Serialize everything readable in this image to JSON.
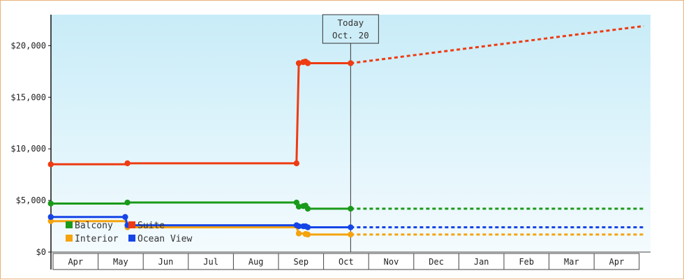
{
  "chart_data": {
    "type": "line",
    "title": "",
    "xlabel": "",
    "ylabel": "",
    "ylim": [
      0,
      23000
    ],
    "y_ticks": [
      {
        "value": 0,
        "label": "$0"
      },
      {
        "value": 5000,
        "label": "$5,000"
      },
      {
        "value": 10000,
        "label": "$10,000"
      },
      {
        "value": 15000,
        "label": "$15,000"
      },
      {
        "value": 20000,
        "label": "$20,000"
      }
    ],
    "month_labels": [
      "Apr",
      "May",
      "Jun",
      "Jul",
      "Aug",
      "Sep",
      "Oct",
      "Nov",
      "Dec",
      "Jan",
      "Feb",
      "Mar",
      "Apr"
    ],
    "x_unit": "months since start of Apr",
    "xlim": [
      -0.08,
      13.1
    ],
    "today": {
      "x": 6.6,
      "line1": "Today",
      "line2": "Oct. 20"
    },
    "grid": false,
    "legend_position": "bottom-left",
    "series": [
      {
        "name": "Balcony",
        "color": "#1a9a1a",
        "values": [
          [
            -0.05,
            4700
          ],
          [
            1.6,
            4700
          ],
          [
            1.65,
            4800
          ],
          [
            5.4,
            4800
          ],
          [
            5.45,
            4400
          ],
          [
            5.55,
            4450
          ],
          [
            5.6,
            4500
          ],
          [
            5.65,
            4200
          ],
          [
            6.6,
            4200
          ]
        ],
        "points": [
          [
            -0.05,
            4700
          ],
          [
            1.65,
            4800
          ],
          [
            5.4,
            4800
          ],
          [
            5.45,
            4400
          ],
          [
            5.55,
            4450
          ],
          [
            5.6,
            4500
          ],
          [
            5.65,
            4200
          ],
          [
            6.6,
            4200
          ]
        ],
        "projection": [
          [
            6.6,
            4200
          ],
          [
            13.1,
            4200
          ]
        ]
      },
      {
        "name": "Suite",
        "color": "#ee3b12",
        "values": [
          [
            -0.05,
            8500
          ],
          [
            1.6,
            8500
          ],
          [
            1.65,
            8600
          ],
          [
            5.4,
            8600
          ],
          [
            5.45,
            18300
          ],
          [
            5.55,
            18400
          ],
          [
            5.6,
            18450
          ],
          [
            5.65,
            18300
          ],
          [
            6.6,
            18300
          ]
        ],
        "points": [
          [
            -0.05,
            8500
          ],
          [
            1.65,
            8600
          ],
          [
            5.4,
            8600
          ],
          [
            5.45,
            18300
          ],
          [
            5.55,
            18400
          ],
          [
            5.6,
            18450
          ],
          [
            5.65,
            18300
          ],
          [
            6.6,
            18300
          ]
        ],
        "projection": [
          [
            6.6,
            18300
          ],
          [
            13.1,
            21900
          ]
        ]
      },
      {
        "name": "Interior",
        "color": "#f5a30e",
        "values": [
          [
            -0.05,
            3000
          ],
          [
            1.6,
            3000
          ],
          [
            1.65,
            2400
          ],
          [
            5.4,
            2400
          ],
          [
            5.45,
            1800
          ],
          [
            5.55,
            1800
          ],
          [
            5.6,
            1750
          ],
          [
            5.65,
            1700
          ],
          [
            6.6,
            1700
          ]
        ],
        "points": [
          [
            -0.05,
            3000
          ],
          [
            1.65,
            2400
          ],
          [
            5.45,
            1800
          ],
          [
            5.6,
            1750
          ],
          [
            5.65,
            1700
          ],
          [
            6.6,
            1700
          ]
        ],
        "projection": [
          [
            6.6,
            1700
          ],
          [
            13.1,
            1700
          ]
        ]
      },
      {
        "name": "Ocean View",
        "color": "#1545e6",
        "values": [
          [
            -0.05,
            3400
          ],
          [
            1.6,
            3400
          ],
          [
            1.65,
            2600
          ],
          [
            5.4,
            2600
          ],
          [
            5.45,
            2500
          ],
          [
            5.55,
            2500
          ],
          [
            5.6,
            2500
          ],
          [
            5.65,
            2400
          ],
          [
            6.6,
            2400
          ]
        ],
        "points": [
          [
            -0.05,
            3400
          ],
          [
            1.6,
            3400
          ],
          [
            1.65,
            2600
          ],
          [
            5.4,
            2600
          ],
          [
            5.45,
            2500
          ],
          [
            5.55,
            2500
          ],
          [
            5.6,
            2500
          ],
          [
            5.65,
            2400
          ],
          [
            6.6,
            2400
          ]
        ],
        "projection": [
          [
            6.6,
            2400
          ],
          [
            13.1,
            2400
          ]
        ]
      }
    ]
  }
}
